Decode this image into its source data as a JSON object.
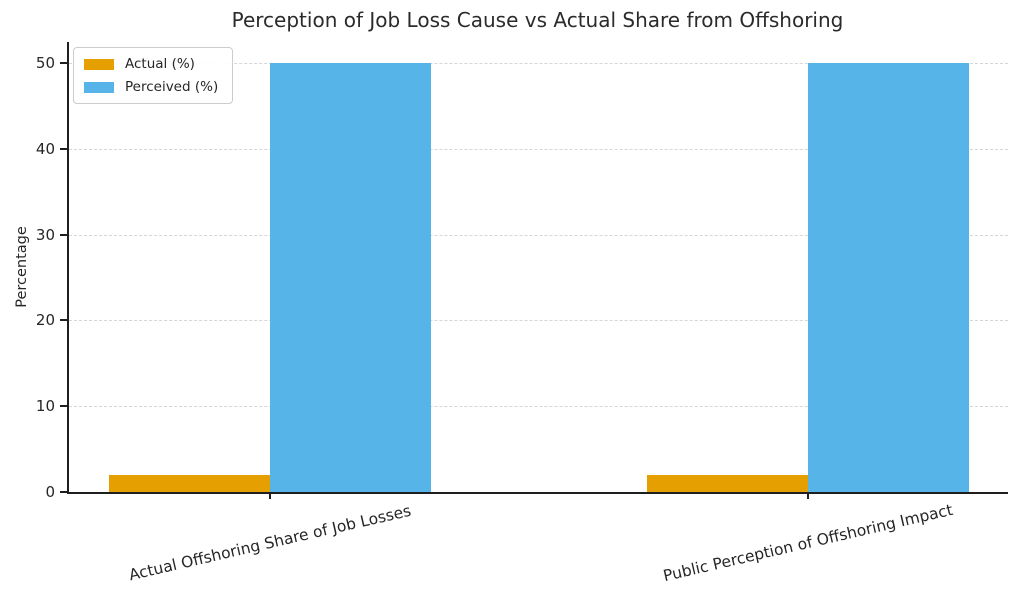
{
  "chart_data": {
    "type": "bar",
    "title": "Perception of Job Loss Cause vs Actual Share from Offshoring",
    "categories": [
      "Actual Offshoring Share of Job Losses",
      "Public Perception of Offshoring Impact"
    ],
    "series": [
      {
        "name": "Actual (%)",
        "color": "#E69F00",
        "values": [
          2,
          2
        ]
      },
      {
        "name": "Perceived (%)",
        "color": "#56B4E9",
        "values": [
          50,
          50
        ]
      }
    ],
    "xlabel": "",
    "ylabel": "Percentage",
    "yticks": [
      0,
      10,
      20,
      30,
      40,
      50
    ],
    "ylim": [
      0,
      52.4
    ],
    "grid": "horizontal dashed",
    "legend_position": "upper left",
    "axis_color": "#1f1f1f",
    "grid_color": "#d6d6d6",
    "text_color": "#262626"
  }
}
